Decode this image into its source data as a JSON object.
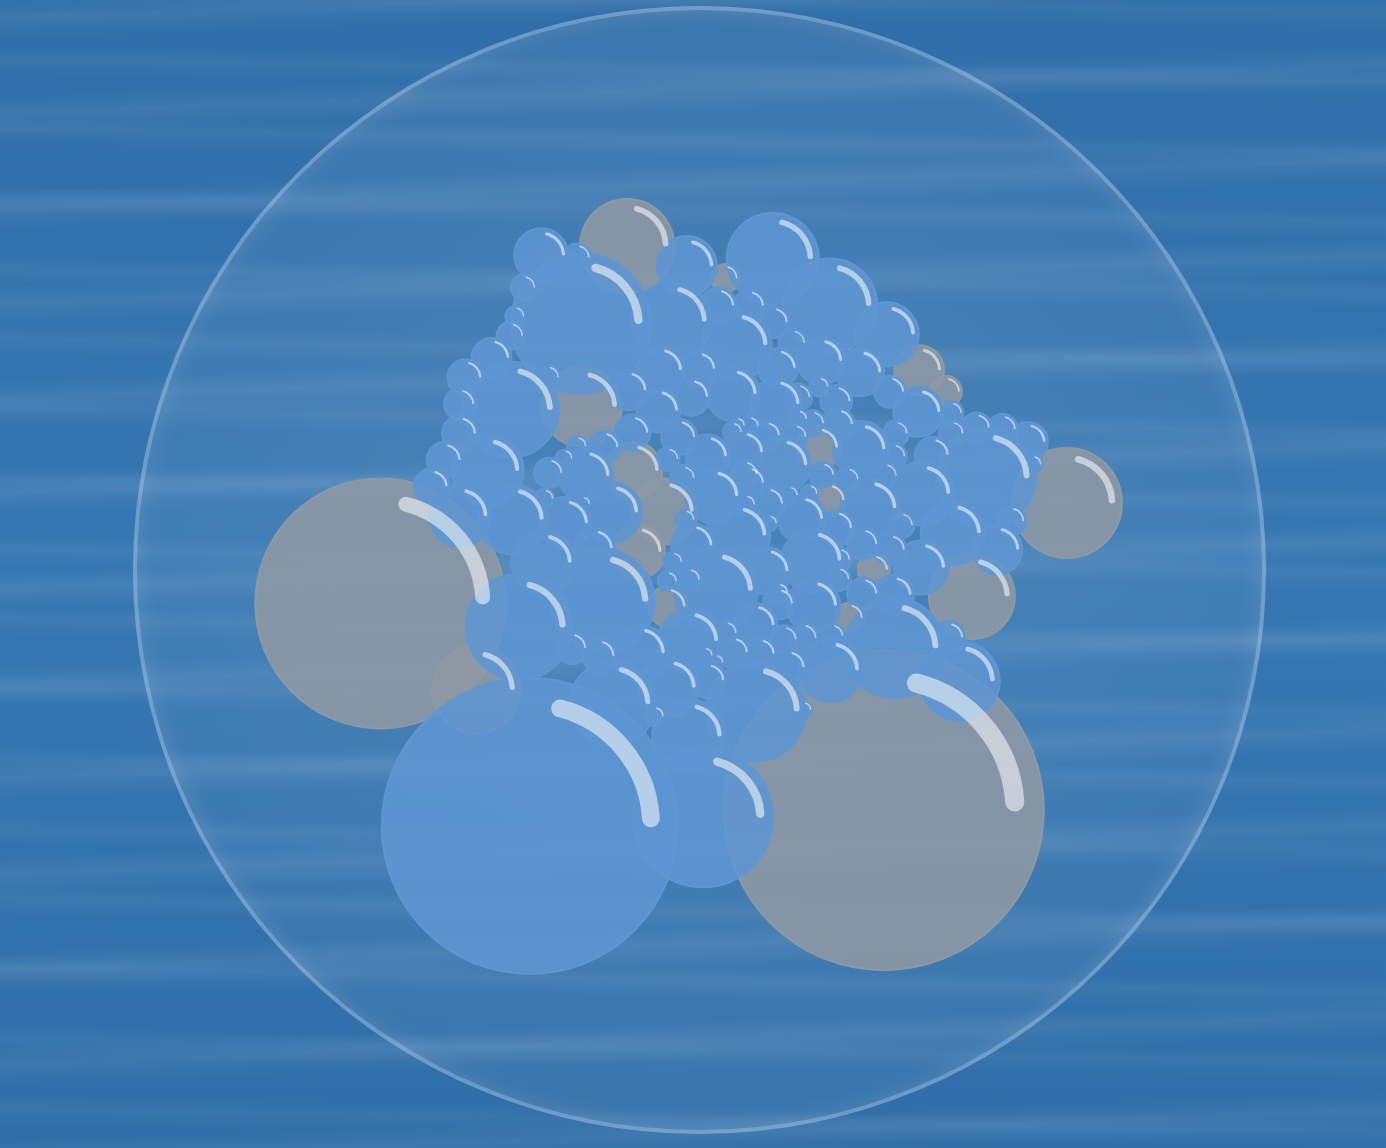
{
  "chart_data": {
    "type": "bubble",
    "xlim": [
      0,
      1386
    ],
    "ylim": [
      1148,
      0
    ],
    "tick_labels": false,
    "grid": false,
    "series": [
      {
        "color": "#5e97d2",
        "x": [
          480,
          706,
          547,
          797,
          872,
          685,
          495,
          542,
          665,
          750,
          946,
          455,
          425,
          389,
          458,
          466,
          575,
          723,
          498,
          588,
          775,
          688,
          956,
          1075,
          1041,
          1032,
          1090,
          992,
          987,
          912,
          924,
          850,
          850,
          873,
          752,
          810,
          720,
          712,
          745,
          802,
          860,
          911,
          804,
          651,
          648,
          609,
          691,
          701,
          675,
          614,
          553,
          526,
          587,
          565,
          693,
          759,
          766,
          791,
          835,
          880,
          915,
          951,
          991,
          955,
          915,
          790,
          805,
          774,
          689,
          624,
          662,
          713,
          746,
          781,
          812,
          818,
          571,
          535,
          430,
          396,
          389,
          389,
          369,
          352,
          455,
          461,
          472,
          504,
          726,
          767,
          798,
          823,
          1063,
          1097,
          1130,
          1030,
          1031,
          1006,
          958,
          950,
          1108,
          1027,
          1137,
          955,
          965,
          944,
          880,
          883,
          849,
          862,
          895,
          830,
          858,
          826,
          831,
          789,
          745,
          767,
          761,
          762,
          819,
          845,
          883,
          884,
          793,
          805,
          837,
          875,
          660,
          680,
          683,
          688,
          667,
          660,
          736,
          723,
          709,
          751,
          577,
          542,
          525,
          505,
          499,
          550,
          838,
          643
        ],
        "y": [
          925,
          913,
          225,
          135,
          200,
          145,
          130,
          133,
          222,
          255,
          240,
          345,
          430,
          493,
          498,
          648,
          612,
          597,
          558,
          755,
          765,
          800,
          677,
          440,
          723,
          517,
          540,
          462,
          348,
          400,
          482,
          555,
          618,
          708,
          520,
          422,
          465,
          410,
          323,
          337,
          277,
          293,
          287,
          290,
          346,
          318,
          327,
          288,
          383,
          377,
          437,
          503,
          488,
          538,
          534,
          404,
          447,
          476,
          497,
          510,
          532,
          540,
          565,
          603,
          601,
          570,
          615,
          645,
          667,
          684,
          732,
          722,
          683,
          685,
          665,
          704,
          688,
          677,
          273,
          300,
          337,
          378,
          415,
          452,
          242,
          215,
          175,
          300,
          200,
          200,
          223,
          252,
          370,
          372,
          390,
          350,
          378,
          408,
          378,
          320,
          500,
          662,
          421,
          410,
          506,
          437,
          333,
          365,
          364,
          436,
          442,
          328,
          313,
          383,
          358,
          381,
          376,
          368,
          435,
          477,
          464,
          462,
          581,
          554,
          503,
          600,
          663,
          660,
          414,
          440,
          498,
          582,
          557,
          584,
          656,
          697,
          687,
          367,
          397,
          396,
          413,
          433,
          469,
          476,
          763,
          772
        ],
        "size": [
          148,
          70,
          70,
          46,
          47,
          30,
          27,
          14,
          40,
          35,
          32,
          48,
          36,
          31,
          35,
          53,
          52,
          42,
          32,
          43,
          50,
          37,
          50,
          50,
          40,
          32,
          25,
          32,
          25,
          28,
          30,
          32,
          27,
          32,
          32,
          28,
          28,
          22,
          27,
          26,
          24,
          24,
          20,
          24,
          22,
          20,
          19,
          18,
          18,
          18,
          27,
          26,
          30,
          20,
          22,
          22,
          17,
          17,
          24,
          18,
          16,
          16,
          27,
          20,
          16,
          24,
          16,
          22,
          32,
          28,
          30,
          18,
          16,
          16,
          14,
          18,
          17,
          16,
          20,
          18,
          16,
          18,
          18,
          18,
          14,
          10,
          13,
          12,
          18,
          16,
          16,
          14,
          15,
          15,
          20,
          12,
          13,
          18,
          13,
          16,
          15,
          16,
          9,
          13,
          13,
          13,
          16,
          16,
          13,
          13,
          12,
          14,
          10,
          13,
          9,
          15,
          10,
          10,
          14,
          10,
          9,
          9,
          12,
          12,
          8,
          10,
          15,
          12,
          12,
          13,
          10,
          12,
          10,
          10,
          12,
          8,
          8,
          8,
          16,
          10,
          9,
          15,
          10,
          7,
          8,
          10
        ]
      },
      {
        "color": "#8f99a4",
        "x": [
          285,
          942,
          607,
          410,
          548,
          1181,
          1057,
          615,
          656,
          621,
          660,
          735,
          1023,
          988,
          857,
          871,
          929,
          897
        ],
        "y": [
          615,
          903,
          117,
          735,
          341,
          475,
          605,
          430,
          487,
          543,
          619,
          162,
          320,
          290,
          398,
          471,
          568,
          635
        ],
        "size": [
          125,
          160,
          47,
          44,
          40,
          55,
          43,
          29,
          33,
          27,
          20,
          14,
          16,
          25,
          22,
          17,
          16,
          15
        ]
      }
    ]
  }
}
